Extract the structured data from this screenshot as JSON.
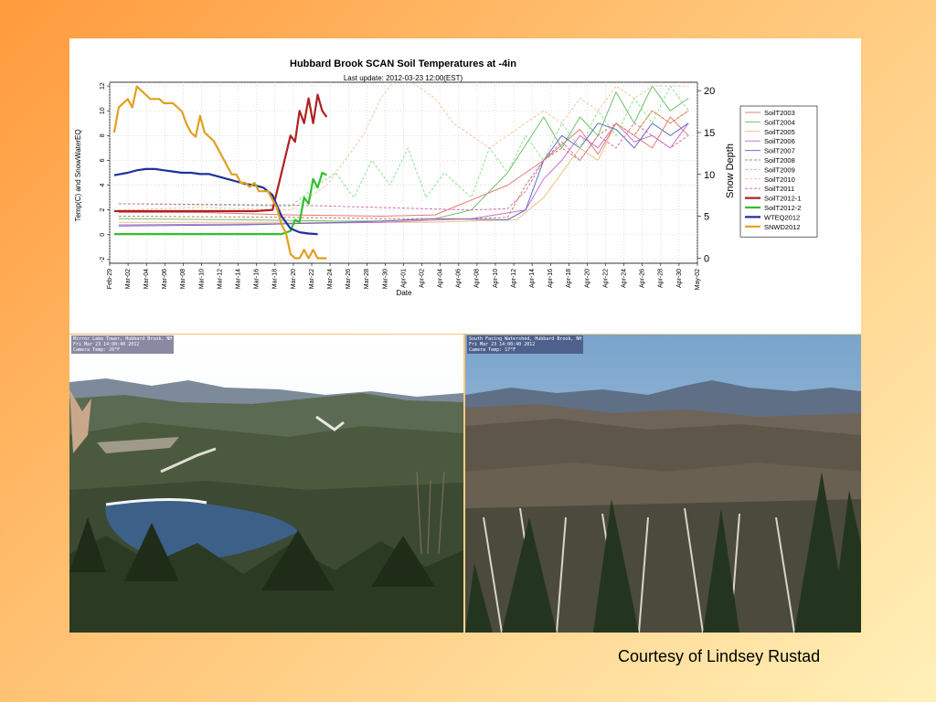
{
  "slide": {
    "credit": "Courtesy of Lindsey Rustad"
  },
  "webcams": {
    "left": {
      "line1": "Mirror Lake Tower, Hubbard Brook, NH",
      "line2": "Fri Mar 23 14:00:40 2012",
      "line3": "Camera Temp: 20°F"
    },
    "right": {
      "line1": "South Facing Watershed, Hubbard Brook, NH",
      "line2": "Fri Mar 23 14:00:40 2012",
      "line3": "Camera Temp: 17°F"
    }
  },
  "chart_data": {
    "type": "line",
    "title": "Hubbard Brook SCAN Soil Temperatures at -4in",
    "subtitle": "Last update: 2012-03-23 12:00(EST)",
    "xlabel": "Date",
    "ylabel": "Temp(C) and SnowWaterEQ",
    "y2label": "Snow Depth",
    "xlim": [
      0,
      65
    ],
    "ylim": [
      -2.3,
      12.3
    ],
    "y2lim": [
      -0.6,
      21
    ],
    "x_ticks": [
      "Feb-29",
      "Mar-02",
      "Mar-04",
      "Mar-06",
      "Mar-08",
      "Mar-10",
      "Mar-12",
      "Mar-14",
      "Mar-16",
      "Mar-18",
      "Mar-20",
      "Mar-22",
      "Mar-24",
      "Mar-26",
      "Mar-28",
      "Mar-30",
      "Apr-01",
      "Apr-02",
      "Apr-04",
      "Apr-06",
      "Apr-08",
      "Apr-10",
      "Apr-12",
      "Apr-14",
      "Apr-16",
      "Apr-18",
      "Apr-20",
      "Apr-22",
      "Apr-24",
      "Apr-26",
      "Apr-28",
      "Apr-30",
      "May-02"
    ],
    "y_ticks": [
      -2,
      0,
      2,
      4,
      6,
      8,
      10,
      12
    ],
    "y2_ticks": [
      0,
      5,
      10,
      15,
      20
    ],
    "grid": true,
    "legend_position": "right",
    "series": [
      {
        "name": "SoilT2003",
        "color": "#e87878",
        "dash": "solid",
        "axis": "y",
        "x": [
          1,
          10,
          20,
          30,
          36,
          44,
          48,
          52,
          54,
          56,
          58,
          60,
          62,
          64
        ],
        "y": [
          1.8,
          1.8,
          1.6,
          1.5,
          1.6,
          4,
          6,
          8.5,
          6.5,
          9,
          8,
          7,
          9.5,
          8
        ]
      },
      {
        "name": "SoilT2004",
        "color": "#70c070",
        "dash": "solid",
        "axis": "y",
        "x": [
          1,
          15,
          25,
          30,
          36,
          40,
          44,
          48,
          50,
          52,
          54,
          56,
          58,
          60,
          62,
          64
        ],
        "y": [
          1.3,
          1.2,
          1.1,
          1.1,
          1.3,
          2,
          5,
          9.5,
          7,
          9.5,
          8,
          11.5,
          9,
          12,
          10,
          11
        ]
      },
      {
        "name": "SoilT2005",
        "color": "#f0c080",
        "dash": "solid",
        "axis": "y",
        "x": [
          1,
          20,
          35,
          45,
          48,
          50,
          52,
          54,
          56,
          58,
          60,
          62,
          64
        ],
        "y": [
          1.0,
          1.0,
          1.0,
          1.2,
          3,
          5,
          7,
          6,
          9,
          8,
          10,
          9,
          10
        ]
      },
      {
        "name": "SoilT2006",
        "color": "#d070d0",
        "dash": "solid",
        "axis": "y",
        "x": [
          1,
          20,
          30,
          40,
          46,
          48,
          50,
          52,
          54,
          56,
          58,
          60,
          62,
          64
        ],
        "y": [
          0.8,
          0.9,
          1.0,
          1.3,
          2,
          4.5,
          6,
          8,
          7,
          9,
          7.5,
          8,
          7,
          9
        ]
      },
      {
        "name": "SoilT2007",
        "color": "#6070c0",
        "dash": "solid",
        "axis": "y",
        "x": [
          1,
          15,
          26,
          30,
          36,
          44,
          46,
          48,
          50,
          52,
          54,
          56,
          58,
          60,
          62,
          64
        ],
        "y": [
          0.7,
          0.8,
          1.0,
          1.1,
          1.3,
          1.2,
          2,
          6,
          8,
          7,
          9,
          8.5,
          7,
          9,
          8,
          9
        ]
      },
      {
        "name": "SoilT2008",
        "color": "#c08060",
        "dash": "dashed",
        "axis": "y",
        "x": [
          1,
          20,
          30,
          40,
          44,
          46,
          48,
          50,
          52,
          54,
          56,
          58,
          60,
          62,
          64
        ],
        "y": [
          1.5,
          1.4,
          1.3,
          1.3,
          1.4,
          4,
          6,
          7,
          6,
          8,
          9,
          8,
          10,
          9,
          10
        ]
      },
      {
        "name": "SoilT2009",
        "color": "#90e090",
        "dash": "dashed",
        "axis": "y",
        "x": [
          1,
          20,
          23,
          25,
          27,
          29,
          31,
          33,
          35,
          37,
          40,
          42,
          44,
          46,
          48,
          50,
          52,
          54,
          56,
          58,
          60,
          62,
          64
        ],
        "y": [
          2.5,
          2.3,
          4,
          5,
          3,
          6,
          4,
          7,
          3,
          5,
          3,
          7,
          5,
          8,
          6,
          9,
          7,
          10,
          8,
          11,
          9,
          12,
          10
        ]
      },
      {
        "name": "SoilT2010",
        "color": "#f0c8a0",
        "dash": "dashed",
        "axis": "y",
        "x": [
          1,
          10,
          20,
          24,
          26,
          28,
          30,
          32,
          34,
          36,
          38,
          40,
          42,
          44,
          46,
          48,
          50,
          52,
          54,
          56,
          58,
          60,
          62,
          64
        ],
        "y": [
          2,
          2.2,
          2,
          4,
          6,
          8,
          11,
          13,
          12,
          11,
          9,
          8,
          7,
          8,
          9,
          10,
          9,
          11,
          10,
          12,
          11,
          12,
          12,
          12
        ]
      },
      {
        "name": "SoilT2011",
        "color": "#d070b0",
        "dash": "dashed",
        "axis": "y",
        "x": [
          1,
          20,
          30,
          40,
          44,
          46,
          48,
          50,
          52,
          54,
          56,
          58,
          60,
          62,
          64
        ],
        "y": [
          2.5,
          2.4,
          2.2,
          2.0,
          2.1,
          3.5,
          6,
          7.5,
          6,
          8,
          7,
          9,
          8,
          7,
          8
        ]
      },
      {
        "name": "SoilT2012-1",
        "color": "#b02020",
        "dash": "solid",
        "axis": "y",
        "x": [
          0.5,
          2,
          4,
          6,
          8,
          10,
          12,
          14,
          16,
          18,
          19,
          20,
          20.5,
          21,
          21.5,
          22,
          22.5,
          23,
          23.5,
          24
        ],
        "y": [
          1.9,
          1.9,
          1.9,
          1.9,
          1.9,
          1.9,
          1.9,
          1.9,
          1.9,
          2.0,
          5,
          8,
          7.5,
          10,
          9,
          11,
          9,
          11.3,
          10,
          9.5
        ]
      },
      {
        "name": "SoilT2012-2",
        "color": "#30c030",
        "dash": "solid",
        "axis": "y",
        "x": [
          0.5,
          5,
          10,
          15,
          19,
          20,
          20.5,
          21,
          21.5,
          22,
          22.5,
          23,
          23.5,
          24
        ],
        "y": [
          0.05,
          0.05,
          0.05,
          0.05,
          0.05,
          0.3,
          1.2,
          1,
          3,
          2.5,
          4.5,
          3.8,
          5,
          4.8
        ]
      },
      {
        "name": "WTEQ2012",
        "color": "#2030a0",
        "dash": "solid",
        "axis": "y",
        "x": [
          0.5,
          2,
          3,
          4,
          5,
          6,
          7,
          8,
          9,
          10,
          11,
          12,
          13,
          14,
          15,
          16,
          17,
          18,
          19,
          20,
          21,
          22,
          23
        ],
        "y": [
          4.8,
          5.0,
          5.2,
          5.3,
          5.3,
          5.2,
          5.1,
          5.0,
          5.0,
          4.9,
          4.9,
          4.7,
          4.5,
          4.3,
          4.1,
          4.0,
          3.8,
          3.2,
          1.5,
          0.5,
          0.2,
          0.1,
          0.05
        ]
      },
      {
        "name": "SNWD2012",
        "color": "#e0a020",
        "dash": "solid",
        "axis": "y2",
        "x": [
          0.5,
          1,
          1.5,
          2,
          2.5,
          3,
          3.5,
          4,
          4.5,
          5,
          5.5,
          6,
          6.5,
          7,
          7.5,
          8,
          8.5,
          9,
          9.5,
          10,
          10.5,
          11,
          11.5,
          12,
          12.5,
          13,
          13.5,
          14,
          14.5,
          15,
          15.5,
          16,
          16.5,
          17,
          17.5,
          18,
          18.5,
          19,
          19.5,
          20,
          20.5,
          21,
          21.5,
          22,
          22.5,
          23,
          24
        ],
        "y": [
          15,
          18,
          18.5,
          19,
          18,
          20.5,
          20,
          19.5,
          19,
          19,
          19,
          18.5,
          18.5,
          18.5,
          18,
          17.5,
          16,
          15,
          14.5,
          17,
          15,
          14.5,
          14,
          13,
          12,
          11,
          10,
          10,
          9,
          9,
          8.5,
          9,
          8,
          8,
          8,
          7,
          6,
          4,
          3,
          0.5,
          0,
          0,
          1,
          0,
          1,
          0,
          0
        ]
      }
    ]
  }
}
